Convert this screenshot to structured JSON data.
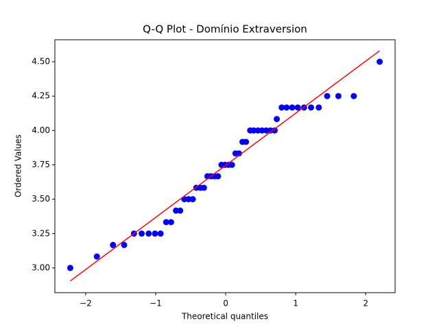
{
  "chart_data": {
    "type": "scatter",
    "title": "Q-Q Plot - Domínio Extraversion",
    "x_label": "Theoretical quantiles",
    "y_label": "Ordered Values",
    "points": {
      "color": "#0000ff",
      "x": [
        -2.22,
        -1.84,
        -1.61,
        -1.45,
        -1.31,
        -1.2,
        -1.1,
        -1.01,
        -0.93,
        -0.85,
        -0.78,
        -0.71,
        -0.65,
        -0.59,
        -0.53,
        -0.47,
        -0.42,
        -0.36,
        -0.31,
        -0.26,
        -0.21,
        -0.16,
        -0.11,
        -0.06,
        -0.01,
        0.04,
        0.09,
        0.14,
        0.19,
        0.24,
        0.29,
        0.35,
        0.4,
        0.46,
        0.52,
        0.58,
        0.64,
        0.7,
        0.73,
        0.8,
        0.87,
        0.95,
        1.03,
        1.12,
        1.22,
        1.33,
        1.45,
        1.61,
        1.83,
        2.2
      ],
      "values": [
        3.0,
        3.083,
        3.167,
        3.167,
        3.25,
        3.25,
        3.25,
        3.25,
        3.25,
        3.333,
        3.333,
        3.417,
        3.417,
        3.5,
        3.5,
        3.5,
        3.583,
        3.583,
        3.583,
        3.667,
        3.667,
        3.667,
        3.667,
        3.75,
        3.75,
        3.75,
        3.75,
        3.833,
        3.833,
        3.917,
        3.917,
        4.0,
        4.0,
        4.0,
        4.0,
        4.0,
        4.0,
        4.0,
        4.083,
        4.167,
        4.167,
        4.167,
        4.167,
        4.167,
        4.167,
        4.167,
        4.25,
        4.25,
        4.25,
        4.5
      ]
    },
    "fit_line": {
      "color": "#ff0000",
      "x": [
        -2.22,
        2.2
      ],
      "values": [
        2.905,
        4.58
      ]
    },
    "xlim": [
      -2.44,
      2.42
    ],
    "ylim": [
      2.82,
      4.66
    ],
    "xticks": [
      {
        "value": -2,
        "label": "−2"
      },
      {
        "value": -1,
        "label": "−1"
      },
      0,
      1,
      2
    ],
    "yticks": [
      {
        "value": 3,
        "label": "3.00"
      },
      {
        "value": 3.25,
        "label": "3.25"
      },
      {
        "value": 3.5,
        "label": "3.50"
      },
      {
        "value": 3.75,
        "label": "3.75"
      },
      {
        "value": 4,
        "label": "4.00"
      },
      {
        "value": 4.25,
        "label": "4.25"
      },
      {
        "value": 4.5,
        "label": "4.50"
      }
    ],
    "grid": false
  }
}
